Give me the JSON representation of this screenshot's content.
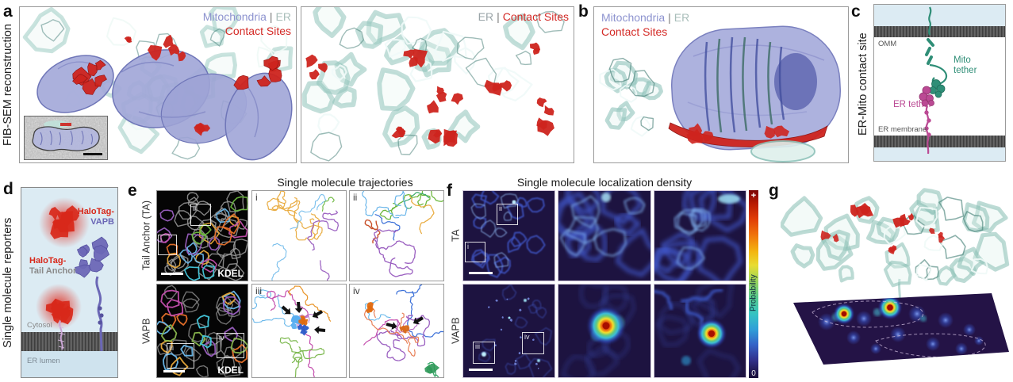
{
  "panels": {
    "a": {
      "label": "a",
      "side_label": "FIB-SEM reconstruction",
      "view1_legend": {
        "mitochondria": "Mitochondria",
        "separator": "|",
        "er": "ER",
        "contact_sites": "Contact Sites"
      },
      "view2_legend": {
        "er": "ER",
        "separator": "|",
        "contact_sites": "Contact Sites"
      }
    },
    "b": {
      "label": "b",
      "legend": {
        "mitochondria": "Mitochondria",
        "separator": "|",
        "er": "ER",
        "contact_sites": "Contact Sites"
      }
    },
    "c": {
      "label": "c",
      "side_label": "ER-Mito contact site",
      "omm": "OMM",
      "mito_tether_line1": "Mito",
      "mito_tether_line2": "tether",
      "er_tether": "ER tether",
      "er_membrane": "ER membrane"
    },
    "d": {
      "label": "d",
      "side_label": "Single molecule reporters",
      "halotag_prefix": "HaloTag-",
      "vapb": "VAPB",
      "tail_anchor": "Tail Anchor",
      "cytosol": "Cytosol",
      "er_lumen": "ER lumen"
    },
    "e": {
      "label": "e",
      "title": "Single molecule trajectories",
      "row1_label": "Tail Anchor (TA)",
      "row2_label": "VAPB",
      "marker": "KDEL",
      "inset_i": "i",
      "inset_ii": "ii",
      "inset_iii": "iii",
      "inset_iv": "iv"
    },
    "f": {
      "label": "f",
      "title": "Single molecule localization density",
      "row1_label": "TA",
      "row2_label": "VAPB",
      "inset_i": "i",
      "inset_ii": "ii",
      "inset_iii": "iii",
      "inset_iv": "iv",
      "colorbar": {
        "max": "+",
        "min": "0",
        "label": "Probability"
      }
    },
    "g": {
      "label": "g"
    }
  },
  "colors": {
    "mitochondria_text": "#8d93cf",
    "er_text": "#a9beba",
    "contact_sites_text": "#d42a26",
    "mito_render": "#a2a7d8",
    "er_render": "#bfe0da",
    "contact_render": "#ce241e",
    "mito_tether": "#2f8e77",
    "er_tether": "#bb4a94",
    "halotag_red": "#d8281a",
    "vapb_purple": "#6b67b6",
    "density_background": "#1d1340"
  }
}
